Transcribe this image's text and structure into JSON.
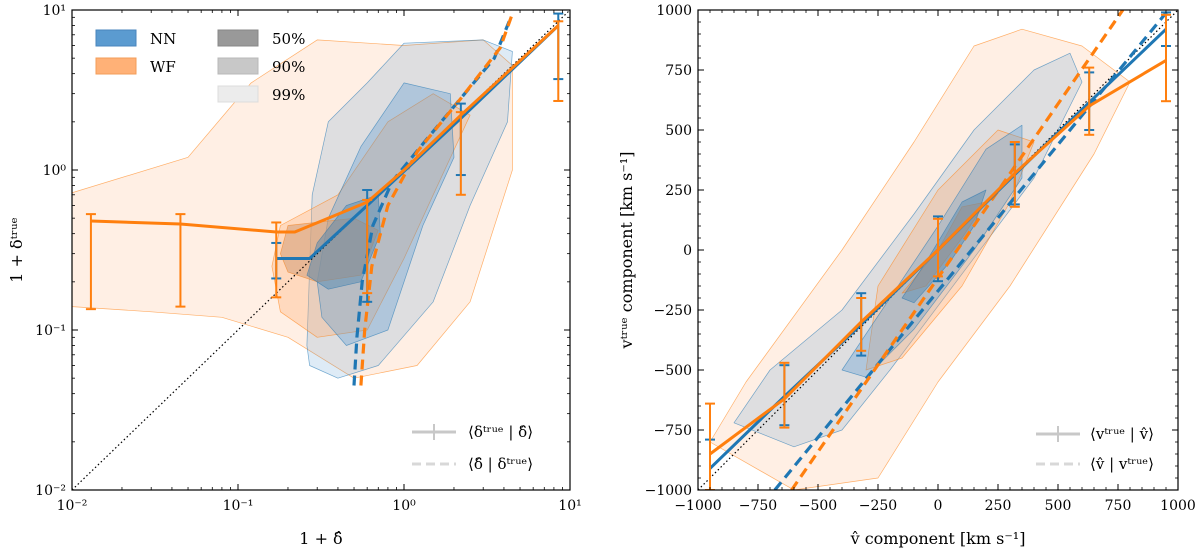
{
  "colors": {
    "nn": "#1f77b4",
    "wf": "#ff7f0e",
    "nn_fill": "#5b9bd0",
    "wf_fill": "#ffb177",
    "grey": "#a0a0a0"
  },
  "chart_data": [
    {
      "type": "line",
      "scale": "log",
      "xlim": [
        0.01,
        10
      ],
      "ylim": [
        0.01,
        10
      ],
      "xticks": [
        {
          "v": 0.01,
          "label": "10⁻²"
        },
        {
          "v": 0.1,
          "label": "10⁻¹"
        },
        {
          "v": 1,
          "label": "10⁰"
        },
        {
          "v": 10,
          "label": "10¹"
        }
      ],
      "yticks": [
        {
          "v": 0.01,
          "label": "10⁻²"
        },
        {
          "v": 0.1,
          "label": "10⁻¹"
        },
        {
          "v": 1,
          "label": "10⁰"
        },
        {
          "v": 10,
          "label": "10¹"
        }
      ],
      "xlabel": "1 + δ̂",
      "ylabel": "1 + δᵗʳᵘᵉ",
      "legend_series": [
        {
          "key": "nn",
          "name": "NN"
        },
        {
          "key": "wf",
          "name": "WF"
        }
      ],
      "legend_levels": [
        "50%",
        "90%",
        "99%"
      ],
      "legend_lines": [
        "⟨δᵗʳᵘᵉ | δ̂⟩",
        "⟨δ̂ | δᵗʳᵘᵉ⟩"
      ],
      "identity": true,
      "series": [
        {
          "name": "NN",
          "key": "nn",
          "mean": [
            [
              0.17,
              0.28
            ],
            [
              0.27,
              0.28
            ],
            [
              0.6,
              0.6
            ],
            [
              2.2,
              2.1
            ],
            [
              8.5,
              8.0
            ]
          ],
          "errorbars": [
            {
              "x": 0.17,
              "lo": 0.21,
              "hi": 0.35
            },
            {
              "x": 0.6,
              "lo": 0.15,
              "hi": 0.75
            },
            {
              "x": 2.2,
              "lo": 0.93,
              "hi": 2.6
            },
            {
              "x": 8.5,
              "lo": 3.7,
              "hi": 9.5
            }
          ],
          "reverse": [
            [
              0.5,
              0.045
            ],
            [
              0.52,
              0.09
            ],
            [
              0.56,
              0.2
            ],
            [
              0.65,
              0.45
            ],
            [
              0.85,
              0.85
            ],
            [
              1.4,
              1.6
            ],
            [
              3.5,
              5.0
            ],
            [
              4.3,
              8.5
            ]
          ],
          "contours": [
            [
              [
                0.3,
                0.35
              ],
              [
                0.45,
                0.6
              ],
              [
                0.7,
                0.7
              ],
              [
                0.72,
                0.4
              ],
              [
                0.55,
                0.2
              ],
              [
                0.35,
                0.18
              ],
              [
                0.26,
                0.22
              ]
            ],
            [
              [
                0.3,
                0.2
              ],
              [
                0.35,
                0.5
              ],
              [
                0.55,
                1.4
              ],
              [
                1.0,
                3.5
              ],
              [
                1.9,
                3.0
              ],
              [
                2.0,
                1.2
              ],
              [
                1.3,
                0.45
              ],
              [
                0.8,
                0.1
              ],
              [
                0.45,
                0.08
              ],
              [
                0.32,
                0.12
              ]
            ],
            [
              [
                0.26,
                0.08
              ],
              [
                0.28,
                0.7
              ],
              [
                0.35,
                2.0
              ],
              [
                0.6,
                3.5
              ],
              [
                1.0,
                6.2
              ],
              [
                3.0,
                6.5
              ],
              [
                4.5,
                5.5
              ],
              [
                4.2,
                2.0
              ],
              [
                2.5,
                0.6
              ],
              [
                1.5,
                0.15
              ],
              [
                0.7,
                0.06
              ],
              [
                0.4,
                0.05
              ],
              [
                0.27,
                0.06
              ]
            ]
          ]
        },
        {
          "name": "WF",
          "key": "wf",
          "mean": [
            [
              0.013,
              0.48
            ],
            [
              0.045,
              0.46
            ],
            [
              0.17,
              0.41
            ],
            [
              0.22,
              0.41
            ],
            [
              0.6,
              0.63
            ],
            [
              1.0,
              1.0
            ],
            [
              2.2,
              2.2
            ],
            [
              8.5,
              8.0
            ]
          ],
          "errorbars": [
            {
              "x": 0.013,
              "lo": 0.135,
              "hi": 0.53
            },
            {
              "x": 0.045,
              "lo": 0.14,
              "hi": 0.53
            },
            {
              "x": 0.17,
              "lo": 0.16,
              "hi": 0.47
            },
            {
              "x": 0.6,
              "lo": 0.17,
              "hi": 0.65
            },
            {
              "x": 2.2,
              "lo": 0.7,
              "hi": 2.3
            },
            {
              "x": 8.5,
              "lo": 2.7,
              "hi": 8.5
            }
          ],
          "reverse": [
            [
              0.55,
              0.045
            ],
            [
              0.58,
              0.1
            ],
            [
              0.64,
              0.25
            ],
            [
              0.8,
              0.6
            ],
            [
              1.2,
              1.3
            ],
            [
              2.2,
              2.8
            ],
            [
              3.8,
              5.8
            ],
            [
              4.5,
              9.5
            ]
          ],
          "contours": [
            [
              [
                0.18,
                0.3
              ],
              [
                0.2,
                0.45
              ],
              [
                0.5,
                0.5
              ],
              [
                0.7,
                0.42
              ],
              [
                0.55,
                0.22
              ],
              [
                0.3,
                0.2
              ],
              [
                0.2,
                0.23
              ]
            ],
            [
              [
                0.16,
                0.25
              ],
              [
                0.18,
                0.45
              ],
              [
                0.4,
                0.7
              ],
              [
                0.8,
                2.0
              ],
              [
                1.5,
                3.0
              ],
              [
                2.5,
                2.2
              ],
              [
                1.5,
                0.7
              ],
              [
                1.0,
                0.28
              ],
              [
                0.6,
                0.1
              ],
              [
                0.3,
                0.09
              ],
              [
                0.18,
                0.13
              ]
            ],
            [
              [
                0.01,
                0.14
              ],
              [
                0.01,
                0.72
              ],
              [
                0.05,
                1.2
              ],
              [
                0.12,
                3.5
              ],
              [
                0.3,
                6.5
              ],
              [
                1.0,
                6.0
              ],
              [
                3.0,
                6.5
              ],
              [
                4.5,
                4.5
              ],
              [
                4.5,
                1.0
              ],
              [
                2.5,
                0.15
              ],
              [
                1.2,
                0.06
              ],
              [
                0.5,
                0.05
              ],
              [
                0.2,
                0.09
              ],
              [
                0.08,
                0.12
              ],
              [
                0.03,
                0.13
              ]
            ]
          ]
        }
      ]
    },
    {
      "type": "line",
      "scale": "linear",
      "xlim": [
        -1000,
        1000
      ],
      "ylim": [
        -1000,
        1000
      ],
      "xticks": [
        {
          "v": -1000,
          "label": "−1000"
        },
        {
          "v": -750,
          "label": "−750"
        },
        {
          "v": -500,
          "label": "−500"
        },
        {
          "v": -250,
          "label": "−250"
        },
        {
          "v": 0,
          "label": "0"
        },
        {
          "v": 250,
          "label": "250"
        },
        {
          "v": 500,
          "label": "500"
        },
        {
          "v": 750,
          "label": "750"
        },
        {
          "v": 1000,
          "label": "1000"
        }
      ],
      "yticks": [
        {
          "v": -1000,
          "label": "−1000"
        },
        {
          "v": -750,
          "label": "−750"
        },
        {
          "v": -500,
          "label": "−500"
        },
        {
          "v": -250,
          "label": "−250"
        },
        {
          "v": 0,
          "label": "0"
        },
        {
          "v": 250,
          "label": "250"
        },
        {
          "v": 500,
          "label": "500"
        },
        {
          "v": 750,
          "label": "750"
        },
        {
          "v": 1000,
          "label": "1000"
        }
      ],
      "xlabel": "v̂ component [km s⁻¹]",
      "ylabel": "vᵗʳᵘᵉ component [km s⁻¹]",
      "legend_lines": [
        "⟨vᵗʳᵘᵉ | v̂⟩",
        "⟨v̂ | vᵗʳᵘᵉ⟩"
      ],
      "identity": true,
      "series": [
        {
          "name": "NN",
          "key": "nn",
          "mean": [
            [
              -950,
              -910
            ],
            [
              -640,
              -610
            ],
            [
              -320,
              -310
            ],
            [
              0,
              0
            ],
            [
              320,
              315
            ],
            [
              630,
              615
            ],
            [
              950,
              920
            ]
          ],
          "errorbars": [
            {
              "x": -950,
              "lo": -1000,
              "hi": -790
            },
            {
              "x": -640,
              "lo": -730,
              "hi": -480
            },
            {
              "x": -320,
              "lo": -440,
              "hi": -180
            },
            {
              "x": 0,
              "lo": -130,
              "hi": 140
            },
            {
              "x": 320,
              "lo": 190,
              "hi": 440
            },
            {
              "x": 630,
              "lo": 500,
              "hi": 740
            },
            {
              "x": 950,
              "lo": 850,
              "hi": 990
            }
          ],
          "reverse": [
            [
              -680,
              -1000
            ],
            [
              960,
              1000
            ]
          ],
          "contours": [
            [
              [
                -150,
                -200
              ],
              [
                -50,
                -50
              ],
              [
                100,
                200
              ],
              [
                200,
                250
              ],
              [
                150,
                100
              ],
              [
                50,
                -50
              ],
              [
                -100,
                -220
              ]
            ],
            [
              [
                -400,
                -500
              ],
              [
                -200,
                -200
              ],
              [
                0,
                100
              ],
              [
                200,
                420
              ],
              [
                350,
                520
              ],
              [
                350,
                300
              ],
              [
                150,
                0
              ],
              [
                -100,
                -330
              ],
              [
                -300,
                -530
              ]
            ],
            [
              [
                -700,
                -780
              ],
              [
                -850,
                -720
              ],
              [
                -700,
                -500
              ],
              [
                -400,
                -250
              ],
              [
                -100,
                150
              ],
              [
                150,
                500
              ],
              [
                400,
                750
              ],
              [
                550,
                820
              ],
              [
                600,
                700
              ],
              [
                400,
                300
              ],
              [
                100,
                -100
              ],
              [
                -200,
                -500
              ],
              [
                -400,
                -750
              ],
              [
                -600,
                -820
              ]
            ]
          ]
        },
        {
          "name": "WF",
          "key": "wf",
          "mean": [
            [
              -950,
              -850
            ],
            [
              -640,
              -620
            ],
            [
              -320,
              -300
            ],
            [
              0,
              0
            ],
            [
              320,
              320
            ],
            [
              630,
              600
            ],
            [
              950,
              790
            ]
          ],
          "errorbars": [
            {
              "x": -950,
              "lo": -1000,
              "hi": -640
            },
            {
              "x": -640,
              "lo": -740,
              "hi": -470
            },
            {
              "x": -320,
              "lo": -420,
              "hi": -200
            },
            {
              "x": 0,
              "lo": -110,
              "hi": 130
            },
            {
              "x": 320,
              "lo": 180,
              "hi": 450
            },
            {
              "x": 630,
              "lo": 480,
              "hi": 760
            },
            {
              "x": 950,
              "lo": 620,
              "hi": 980
            }
          ],
          "reverse": [
            [
              -610,
              -1000
            ],
            [
              770,
              1000
            ]
          ],
          "contours": [
            [
              [
                -150,
                -180
              ],
              [
                0,
                0
              ],
              [
                100,
                180
              ],
              [
                200,
                200
              ],
              [
                100,
                50
              ],
              [
                -50,
                -150
              ]
            ],
            [
              [
                -300,
                -500
              ],
              [
                -250,
                -150
              ],
              [
                0,
                250
              ],
              [
                250,
                500
              ],
              [
                400,
                450
              ],
              [
                300,
                200
              ],
              [
                100,
                -150
              ],
              [
                -150,
                -450
              ]
            ],
            [
              [
                -600,
                -1000
              ],
              [
                -950,
                -800
              ],
              [
                -800,
                -550
              ],
              [
                -400,
                0
              ],
              [
                -100,
                450
              ],
              [
                150,
                850
              ],
              [
                350,
                920
              ],
              [
                600,
                850
              ],
              [
                800,
                700
              ],
              [
                650,
                400
              ],
              [
                300,
                -150
              ],
              [
                0,
                -550
              ],
              [
                -250,
                -950
              ]
            ]
          ]
        }
      ]
    }
  ]
}
